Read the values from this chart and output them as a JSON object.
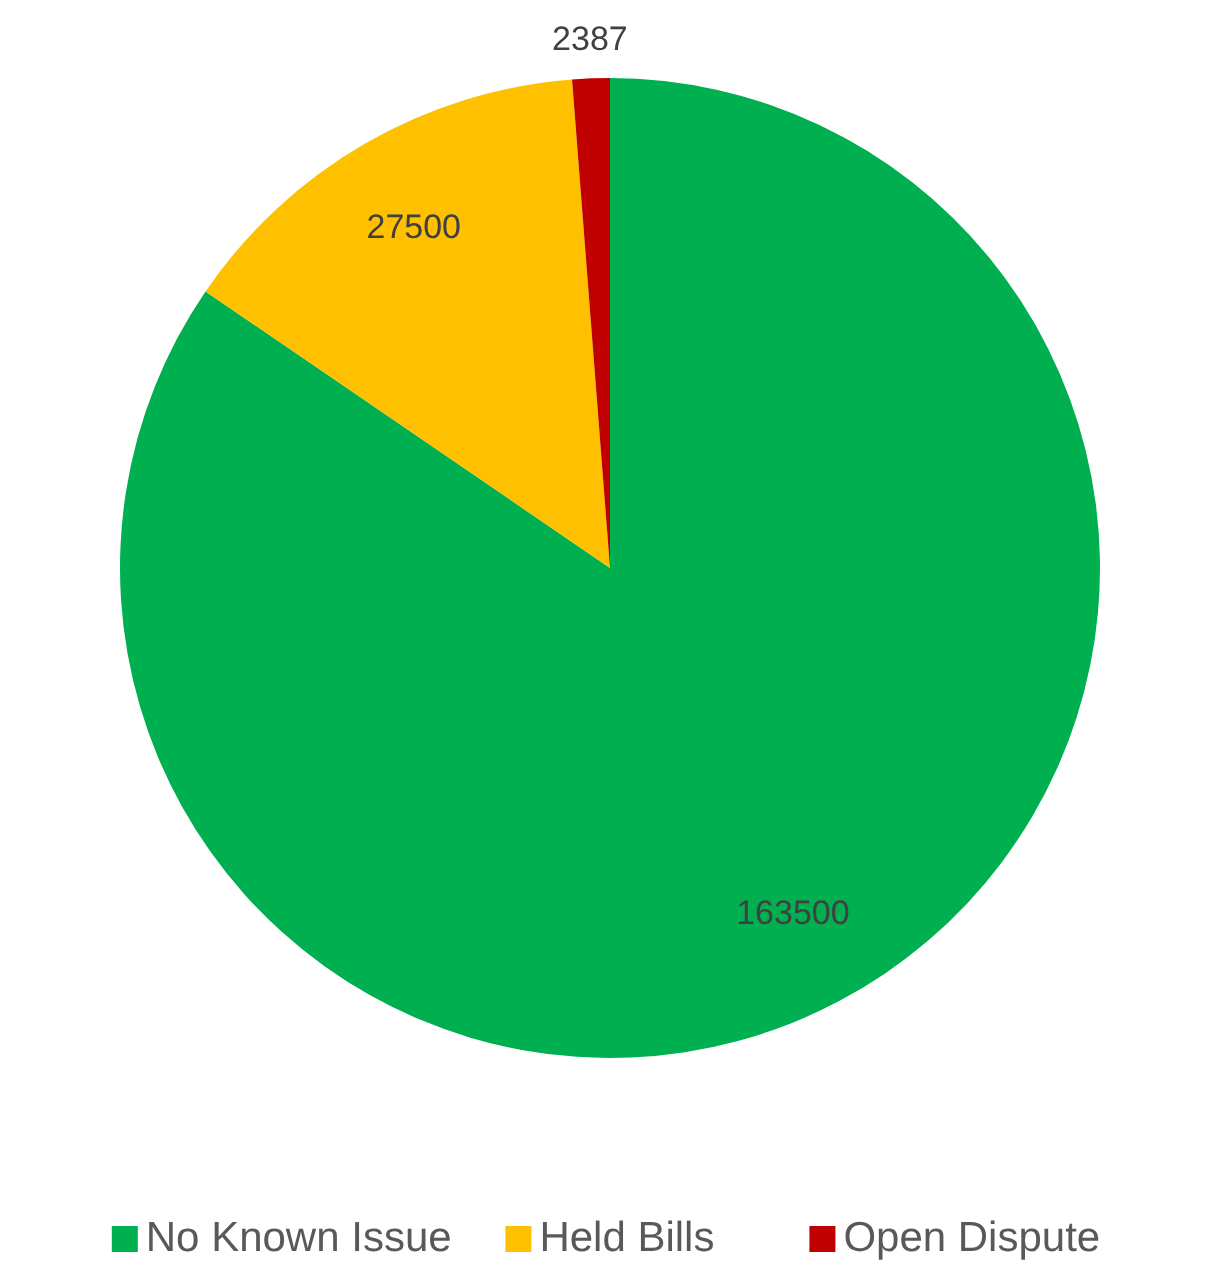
{
  "chart_data": {
    "type": "pie",
    "categories": [
      "No Known Issue",
      "Held Bills",
      "Open Dispute"
    ],
    "values": [
      163500,
      27500,
      2387
    ],
    "colors": [
      "#00b050",
      "#ffc000",
      "#c00000"
    ],
    "data_labels": true,
    "legend": "bottom"
  }
}
